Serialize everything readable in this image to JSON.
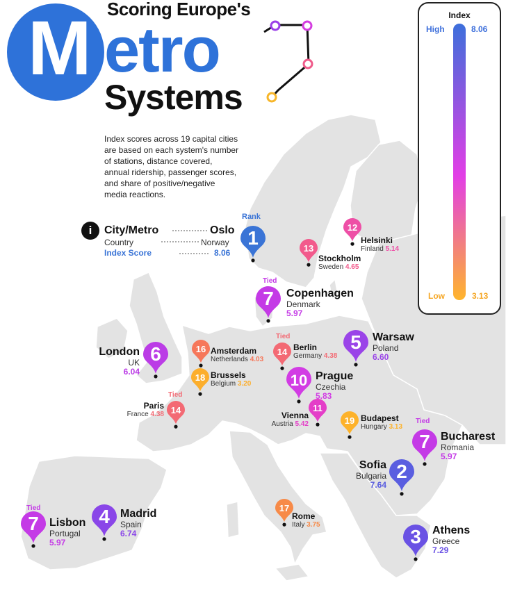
{
  "header": {
    "title_top": "Scoring Europe's",
    "title_metro_m": "M",
    "title_metro_rest": "etro",
    "title_bottom": "Systems",
    "intro": [
      "Index scores across 19 capital cities",
      "are based on each system's number",
      "of stations, distance covered,",
      "annual ridership, passenger scores,",
      "and share of positive/negative",
      "media reactions."
    ]
  },
  "legend_key": {
    "info_icon": "info-icon",
    "info_glyph": "i",
    "city_metro": "City/Metro",
    "country": "Country",
    "index_score": "Index Score",
    "rank_label": "Rank",
    "example_city": "Oslo",
    "example_country": "Norway",
    "example_score": "8.06",
    "example_rank": "1",
    "example_color": "#3a74d6"
  },
  "index_legend": {
    "title": "Index",
    "high_label": "High",
    "high_value": "8.06",
    "low_label": "Low",
    "low_value": "3.13",
    "color_high": "#3d6fdb",
    "color_mid": "#e23ee6",
    "color_low": "#ffb52c"
  },
  "tied_label": "Tied",
  "cities": [
    {
      "rank": "7",
      "city": "Copenhagen",
      "country": "Denmark",
      "score": "5.97",
      "tied": true,
      "color": "#c43ae6"
    },
    {
      "rank": "12",
      "city": "Helsinki",
      "country": "Finland",
      "score": "5.14",
      "tied": false,
      "color": "#ee4fa6"
    },
    {
      "rank": "13",
      "city": "Stockholm",
      "country": "Sweden",
      "score": "4.65",
      "tied": false,
      "color": "#f25a8c"
    },
    {
      "rank": "5",
      "city": "Warsaw",
      "country": "Poland",
      "score": "6.60",
      "tied": false,
      "color": "#9a44e8"
    },
    {
      "rank": "6",
      "city": "London",
      "country": "UK",
      "score": "6.04",
      "tied": false,
      "color": "#bb3ce6"
    },
    {
      "rank": "16",
      "city": "Amsterdam",
      "country": "Netherlands",
      "score": "4.03",
      "tied": false,
      "color": "#f6775a"
    },
    {
      "rank": "14",
      "city": "Berlin",
      "country": "Germany",
      "score": "4.38",
      "tied": true,
      "color": "#f36a74"
    },
    {
      "rank": "18",
      "city": "Brussels",
      "country": "Belgium",
      "score": "3.20",
      "tied": false,
      "color": "#fcae2c"
    },
    {
      "rank": "10",
      "city": "Prague",
      "country": "Czechia",
      "score": "5.83",
      "tied": false,
      "color": "#d23ce4"
    },
    {
      "rank": "14",
      "city": "Paris",
      "country": "France",
      "score": "4.38",
      "tied": true,
      "color": "#f36a74"
    },
    {
      "rank": "11",
      "city": "Vienna",
      "country": "Austria",
      "score": "5.42",
      "tied": false,
      "color": "#e43ec8"
    },
    {
      "rank": "19",
      "city": "Budapest",
      "country": "Hungary",
      "score": "3.13",
      "tied": false,
      "color": "#fdb22a"
    },
    {
      "rank": "7",
      "city": "Bucharest",
      "country": "Romania",
      "score": "5.97",
      "tied": true,
      "color": "#c43ae6"
    },
    {
      "rank": "2",
      "city": "Sofia",
      "country": "Bulgaria",
      "score": "7.64",
      "tied": false,
      "color": "#5a5ee0"
    },
    {
      "rank": "17",
      "city": "Rome",
      "country": "Italy",
      "score": "3.75",
      "tied": false,
      "color": "#f78a48"
    },
    {
      "rank": "7",
      "city": "Lisbon",
      "country": "Portugal",
      "score": "5.97",
      "tied": true,
      "color": "#c43ae6"
    },
    {
      "rank": "4",
      "city": "Madrid",
      "country": "Spain",
      "score": "6.74",
      "tied": false,
      "color": "#8a46e8"
    },
    {
      "rank": "3",
      "city": "Athens",
      "country": "Greece",
      "score": "7.29",
      "tied": false,
      "color": "#6a52e4"
    }
  ]
}
